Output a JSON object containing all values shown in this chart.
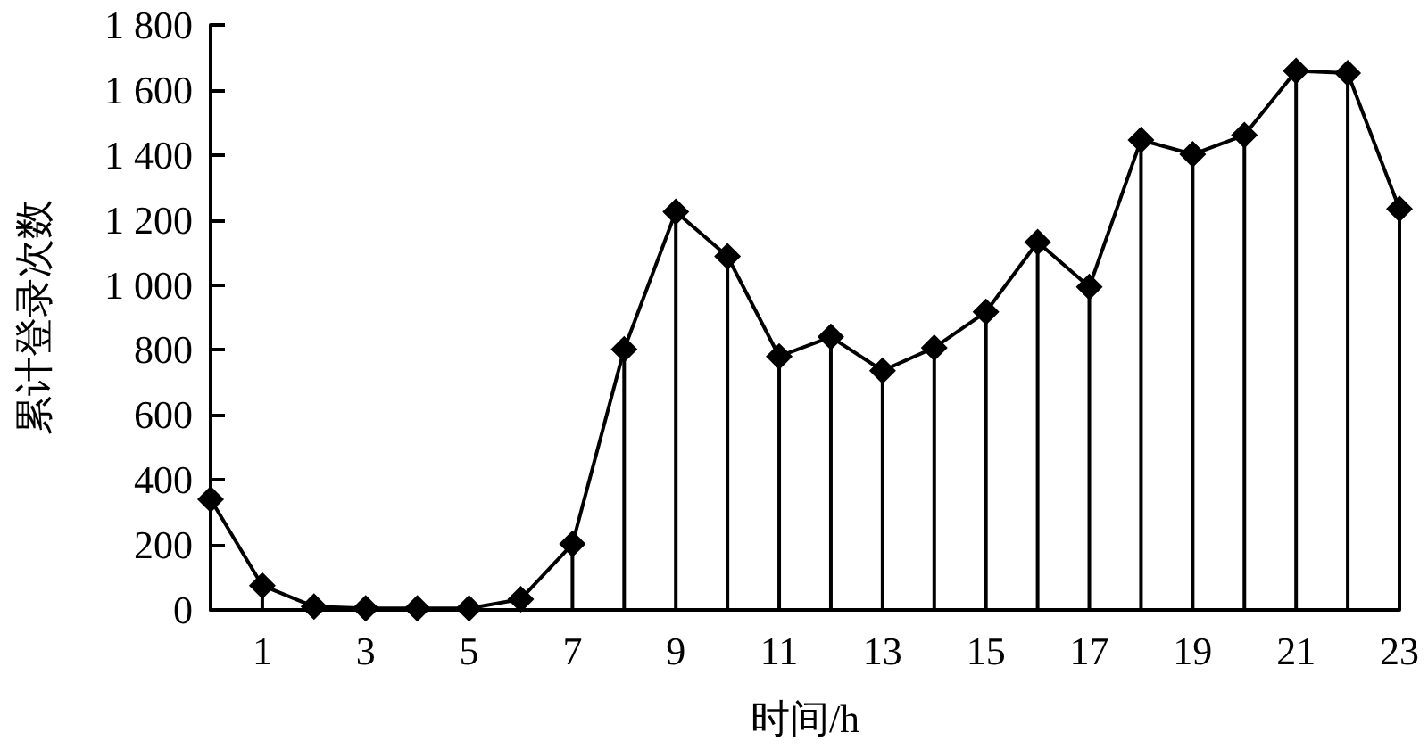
{
  "chart_data": {
    "type": "lollipop",
    "xlabel": "时间/h",
    "ylabel": "累计登录次数",
    "x": [
      0,
      1,
      2,
      3,
      4,
      5,
      6,
      7,
      8,
      9,
      10,
      11,
      12,
      13,
      14,
      15,
      16,
      17,
      18,
      19,
      20,
      21,
      22,
      23
    ],
    "series": [
      {
        "color": "#000000",
        "values": [
          340,
          75,
          10,
          5,
          5,
          5,
          33,
          203,
          802,
          1225,
          1088,
          780,
          840,
          736,
          807,
          917,
          1132,
          994,
          1446,
          1402,
          1461,
          1659,
          1652,
          1234
        ]
      },
      {
        "type": "line",
        "color": "#000000",
        "marker": "none",
        "values": [
          340,
          75,
          10,
          5,
          5,
          5,
          33,
          203,
          802,
          1225,
          1088,
          780,
          840,
          736,
          807,
          917,
          1132,
          994,
          1446,
          1402,
          1461,
          1659,
          1652,
          1234
        ]
      }
    ],
    "xlim": [
      0,
      23
    ],
    "xticks": [
      1,
      3,
      5,
      7,
      9,
      11,
      13,
      15,
      17,
      19,
      21,
      23
    ],
    "ylim": [
      0,
      1800
    ],
    "yticks": [
      0,
      200,
      400,
      600,
      800,
      {
        "value": 1000,
        "label": "1 000"
      },
      {
        "value": 1200,
        "label": "1 200"
      },
      {
        "value": 1400,
        "label": "1 400"
      },
      {
        "value": 1600,
        "label": "1 600"
      },
      {
        "value": 1800,
        "label": "1 800"
      }
    ],
    "grid": false,
    "marker": "diamond",
    "line_style": "solid"
  }
}
